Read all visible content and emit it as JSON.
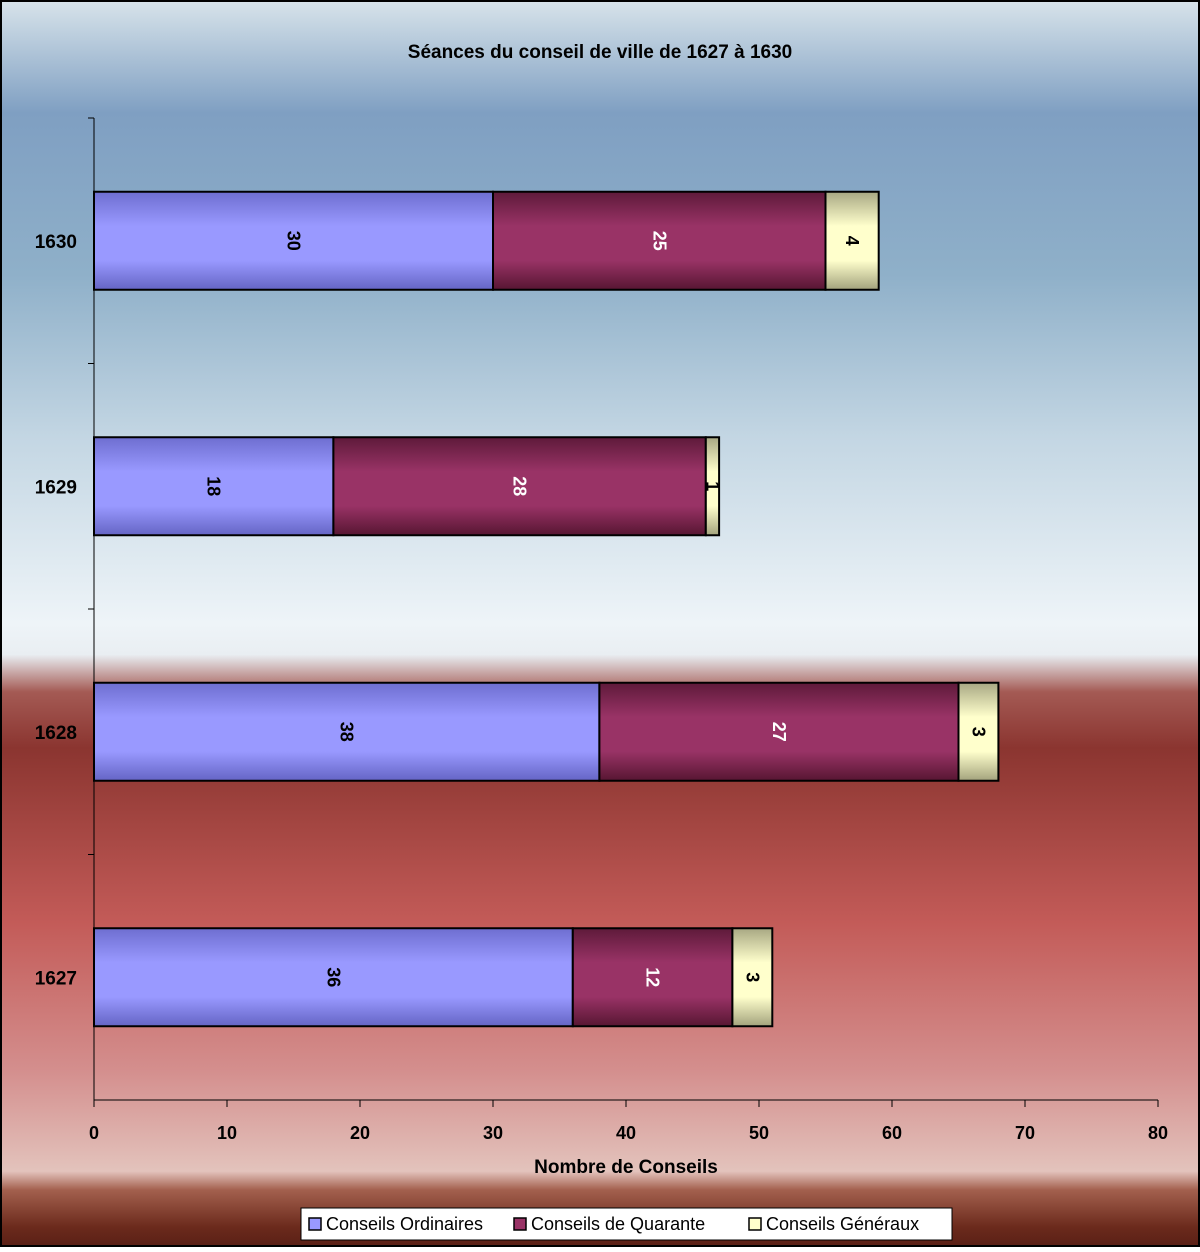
{
  "chart_data": {
    "type": "bar",
    "orientation": "horizontal",
    "stacked": true,
    "title": "Séances du conseil de ville de 1627 à 1630",
    "xlabel": "Nombre de Conseils",
    "ylabel": "",
    "xlim": [
      0,
      80
    ],
    "x_ticks": [
      "0",
      "10",
      "20",
      "30",
      "40",
      "50",
      "60",
      "70",
      "80"
    ],
    "categories": [
      "1627",
      "1628",
      "1629",
      "1630"
    ],
    "series": [
      {
        "name": "Conseils Ordinaires",
        "values": [
          36,
          38,
          18,
          30
        ],
        "color": "#9999FF"
      },
      {
        "name": "Conseils de Quarante",
        "values": [
          12,
          27,
          28,
          25
        ],
        "color": "#993366"
      },
      {
        "name": "Conseils Généraux",
        "values": [
          3,
          3,
          1,
          4
        ],
        "color": "#FFFFCC"
      }
    ],
    "grid": false,
    "data_labels": true,
    "legend_position": "bottom",
    "background": "gradient"
  }
}
